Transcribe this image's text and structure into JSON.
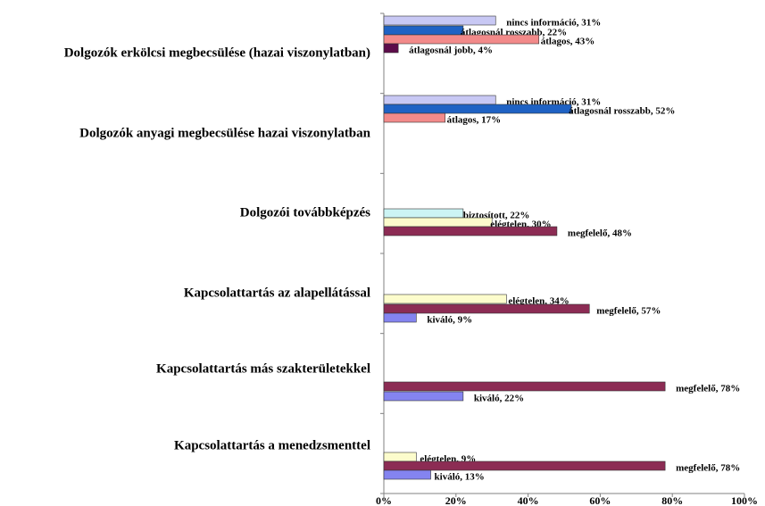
{
  "chart_data": {
    "type": "bar",
    "groups": [
      {
        "category": "Dolgozók erkölcsi megbecsülése (hazai viszonylatban)",
        "values": [
          31,
          22,
          43,
          4
        ],
        "value_labels": [
          "nincs információ, 31%",
          "átlagosnál rosszabb, 22%",
          "átlagos, 43%",
          "átlagosnál jobb, 4%"
        ],
        "colors": [
          "#c8c8f4",
          "#1f62c4",
          "#f28a8a",
          "#5c0c4a"
        ]
      },
      {
        "category": "Dolgozók anyagi megbecsülése hazai viszonylatban",
        "values": [
          31,
          52,
          17
        ],
        "value_labels": [
          "nincs információ, 31%",
          "átlagosnál rosszabb, 52%",
          "átlagos, 17%"
        ],
        "colors": [
          "#c8c8f4",
          "#1f62c4",
          "#f28a8a"
        ]
      },
      {
        "category": "Dolgozói továbbképzés",
        "values": [
          22,
          30,
          48
        ],
        "value_labels": [
          "biztosított, 22%",
          "elégtelen, 30%",
          "megfelelő, 48%"
        ],
        "colors": [
          "#ccf4f4",
          "#fcfccc",
          "#8c2c54"
        ]
      },
      {
        "category": "Kapcsolattartás az alapellátással",
        "values": [
          34,
          57,
          9
        ],
        "value_labels": [
          "elégtelen, 34%",
          "megfelelő, 57%",
          "kiváló, 9%"
        ],
        "colors": [
          "#fcfccc",
          "#8c2c54",
          "#8484f0"
        ]
      },
      {
        "category": "Kapcsolattartás más szakterületekkel",
        "values": [
          78,
          22
        ],
        "value_labels": [
          "megfelelő, 78%",
          "kiváló, 22%"
        ],
        "colors": [
          "#8c2c54",
          "#8484f0"
        ]
      },
      {
        "category": "Kapcsolattartás a menedzsmenttel",
        "values": [
          9,
          78,
          13
        ],
        "value_labels": [
          "elégtelen, 9%",
          "megfelelő, 78%",
          "kiváló, 13%"
        ],
        "colors": [
          "#fcfccc",
          "#8c2c54",
          "#8484f0"
        ]
      }
    ],
    "xlim": [
      0,
      100
    ],
    "xticks": [
      {
        "value": 0,
        "label": "0%"
      },
      {
        "value": 20,
        "label": "20%"
      },
      {
        "value": 40,
        "label": "40%"
      },
      {
        "value": 60,
        "label": "60%"
      },
      {
        "value": 80,
        "label": "80%"
      },
      {
        "value": 100,
        "label": "100%"
      }
    ]
  }
}
